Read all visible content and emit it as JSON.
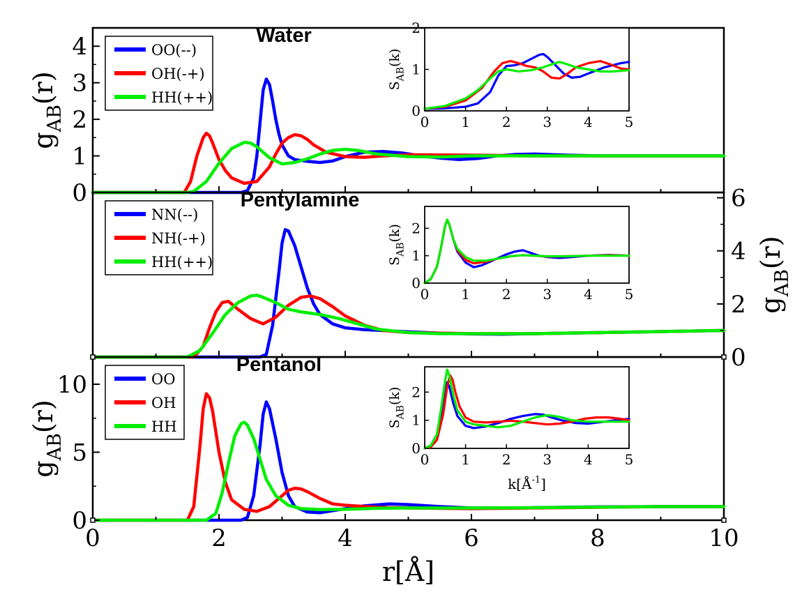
{
  "chart_data": [
    {
      "type": "line",
      "title": "Water",
      "ylabel": "g_AB(r)",
      "xlim": [
        0,
        10
      ],
      "ylim": [
        0,
        4.5
      ],
      "yticks": [
        0,
        1,
        2,
        3,
        4
      ],
      "y_axis_side": "left",
      "legend_position": "top-left",
      "series": [
        {
          "name": "OO(--)",
          "color": "#0000ff",
          "x": [
            0,
            2.35,
            2.45,
            2.55,
            2.6,
            2.65,
            2.7,
            2.75,
            2.8,
            2.85,
            2.9,
            2.95,
            3.0,
            3.1,
            3.2,
            3.4,
            3.6,
            3.8,
            4.0,
            4.3,
            4.6,
            4.9,
            5.2,
            5.5,
            5.8,
            6.1,
            6.4,
            6.7,
            7.0,
            7.5,
            8,
            9,
            10
          ],
          "y": [
            0,
            0,
            0.05,
            0.4,
            1.0,
            1.9,
            2.8,
            3.1,
            2.95,
            2.5,
            2.0,
            1.6,
            1.3,
            1.0,
            0.9,
            0.85,
            0.82,
            0.86,
            0.98,
            1.1,
            1.12,
            1.08,
            1.0,
            0.94,
            0.9,
            0.93,
            1.0,
            1.04,
            1.05,
            1.02,
            1.0,
            1.0,
            1.0
          ]
        },
        {
          "name": "OH(-+)",
          "color": "#ff0000",
          "x": [
            0,
            1.45,
            1.55,
            1.65,
            1.75,
            1.8,
            1.85,
            1.9,
            2.0,
            2.1,
            2.2,
            2.4,
            2.6,
            2.8,
            2.9,
            3.0,
            3.1,
            3.2,
            3.3,
            3.4,
            3.5,
            3.7,
            4.0,
            4.3,
            4.6,
            5.0,
            6,
            7,
            8,
            9,
            10
          ],
          "y": [
            0,
            0,
            0.3,
            1.0,
            1.5,
            1.62,
            1.55,
            1.35,
            0.9,
            0.6,
            0.4,
            0.25,
            0.3,
            0.7,
            1.05,
            1.35,
            1.5,
            1.58,
            1.55,
            1.45,
            1.3,
            1.1,
            0.98,
            0.96,
            1.0,
            1.03,
            1.02,
            1.0,
            1.0,
            1.0,
            1.0
          ]
        },
        {
          "name": "HH(++)",
          "color": "#00ee00",
          "x": [
            0,
            1.5,
            1.6,
            1.8,
            2.0,
            2.2,
            2.4,
            2.5,
            2.6,
            2.7,
            2.8,
            3.0,
            3.2,
            3.4,
            3.6,
            3.8,
            4.0,
            4.2,
            4.5,
            5.0,
            5.5,
            6,
            7,
            8,
            9,
            10
          ],
          "y": [
            0,
            0,
            0.03,
            0.3,
            0.8,
            1.2,
            1.37,
            1.35,
            1.25,
            1.1,
            0.95,
            0.78,
            0.82,
            0.92,
            1.05,
            1.15,
            1.18,
            1.15,
            1.05,
            0.98,
            0.97,
            1.0,
            1.0,
            1.0,
            1.0,
            1.0
          ]
        }
      ]
    },
    {
      "type": "line",
      "title": "Pentylamine",
      "ylabel": "g_AB(r)",
      "xlim": [
        0,
        10
      ],
      "ylim": [
        0,
        6.2
      ],
      "yticks": [
        0,
        2,
        4,
        6
      ],
      "y_axis_side": "right",
      "legend_position": "top-left",
      "series": [
        {
          "name": "NN(--)",
          "color": "#0000ff",
          "x": [
            0,
            2.65,
            2.75,
            2.85,
            2.95,
            3.0,
            3.05,
            3.1,
            3.2,
            3.3,
            3.4,
            3.5,
            3.6,
            3.8,
            4.0,
            4.3,
            4.6,
            5.0,
            5.5,
            6,
            6.5,
            7,
            8,
            9,
            10
          ],
          "y": [
            0,
            0,
            0.1,
            1.2,
            3.2,
            4.3,
            4.8,
            4.75,
            4.2,
            3.4,
            2.6,
            2.0,
            1.6,
            1.25,
            1.1,
            1.03,
            1.0,
            0.95,
            0.9,
            0.87,
            0.86,
            0.88,
            0.92,
            0.96,
            1.0
          ]
        },
        {
          "name": "NH(-+)",
          "color": "#ff0000",
          "x": [
            0,
            1.6,
            1.75,
            1.85,
            1.95,
            2.05,
            2.15,
            2.3,
            2.5,
            2.7,
            2.9,
            3.1,
            3.3,
            3.45,
            3.6,
            3.8,
            4.0,
            4.3,
            4.6,
            5,
            5.5,
            6,
            7,
            8,
            9,
            10
          ],
          "y": [
            0,
            0,
            0.4,
            1.1,
            1.7,
            2.05,
            2.1,
            1.8,
            1.45,
            1.25,
            1.5,
            1.95,
            2.25,
            2.3,
            2.2,
            1.9,
            1.55,
            1.2,
            1.0,
            0.92,
            0.9,
            0.88,
            0.88,
            0.92,
            0.96,
            1.0
          ]
        },
        {
          "name": "HH(++)",
          "color": "#00ee00",
          "x": [
            0,
            1.5,
            1.7,
            1.9,
            2.1,
            2.3,
            2.5,
            2.6,
            2.7,
            2.9,
            3.1,
            3.3,
            3.6,
            3.9,
            4.2,
            4.5,
            5,
            5.5,
            6,
            7,
            8,
            9,
            10
          ],
          "y": [
            0,
            0,
            0.25,
            0.9,
            1.6,
            2.05,
            2.3,
            2.33,
            2.25,
            2.05,
            1.8,
            1.7,
            1.6,
            1.45,
            1.25,
            1.05,
            0.92,
            0.88,
            0.88,
            0.88,
            0.92,
            0.96,
            1.0
          ]
        }
      ]
    },
    {
      "type": "line",
      "title": "Pentanol",
      "ylabel": "g_AB(r)",
      "xlabel": "r[Å]",
      "xlim": [
        0,
        10
      ],
      "ylim": [
        0,
        12
      ],
      "yticks": [
        0,
        5,
        10
      ],
      "xticks": [
        0,
        2,
        4,
        6,
        8,
        10
      ],
      "y_axis_side": "left",
      "legend_position": "top-left",
      "series": [
        {
          "name": "OO",
          "color": "#0000ff",
          "x": [
            0,
            2.35,
            2.45,
            2.55,
            2.65,
            2.7,
            2.75,
            2.8,
            2.9,
            3.0,
            3.1,
            3.2,
            3.4,
            3.6,
            3.8,
            4.0,
            4.3,
            4.7,
            5.0,
            5.5,
            6,
            7,
            8,
            9,
            10
          ],
          "y": [
            0,
            0,
            0.2,
            1.8,
            5.5,
            7.8,
            8.7,
            8.2,
            6.0,
            3.5,
            1.8,
            1.0,
            0.6,
            0.55,
            0.7,
            0.85,
            1.05,
            1.2,
            1.15,
            1.0,
            0.9,
            0.92,
            0.98,
            1.0,
            1.0
          ]
        },
        {
          "name": "OH",
          "color": "#ff0000",
          "x": [
            0,
            1.5,
            1.6,
            1.7,
            1.75,
            1.8,
            1.85,
            1.9,
            2.0,
            2.1,
            2.2,
            2.4,
            2.6,
            2.8,
            3.0,
            3.1,
            3.2,
            3.3,
            3.4,
            3.6,
            3.8,
            4.0,
            4.5,
            5,
            6,
            7,
            8,
            9,
            10
          ],
          "y": [
            0,
            0,
            1.0,
            5.5,
            8.2,
            9.3,
            9.0,
            8.0,
            5.0,
            2.8,
            1.5,
            0.8,
            0.65,
            1.0,
            1.8,
            2.2,
            2.35,
            2.3,
            2.1,
            1.6,
            1.2,
            1.1,
            0.95,
            0.9,
            0.85,
            0.9,
            0.95,
            1.0,
            1.0
          ]
        },
        {
          "name": "HH",
          "color": "#00ee00",
          "x": [
            0,
            1.8,
            1.95,
            2.05,
            2.15,
            2.25,
            2.35,
            2.4,
            2.45,
            2.55,
            2.65,
            2.75,
            2.9,
            3.1,
            3.3,
            3.6,
            4.0,
            4.5,
            5,
            6,
            7,
            8,
            9,
            10
          ],
          "y": [
            0,
            0,
            0.5,
            2.0,
            4.2,
            6.2,
            7.1,
            7.2,
            7.0,
            6.0,
            4.5,
            3.0,
            1.8,
            1.1,
            0.85,
            0.78,
            0.8,
            0.88,
            0.9,
            0.9,
            0.92,
            0.96,
            1.0,
            1.0
          ]
        }
      ]
    },
    {
      "type": "line",
      "title": "",
      "ylabel": "S_AB(k)",
      "xlim": [
        0,
        5
      ],
      "ylim": [
        0,
        2
      ],
      "xticks": [
        0,
        1,
        2,
        3,
        4,
        5
      ],
      "yticks": [
        0,
        1,
        2
      ],
      "inset_of": "Water",
      "series": [
        {
          "name": "",
          "color": "#0000ff",
          "x": [
            0,
            0.5,
            1.0,
            1.3,
            1.6,
            1.8,
            2.0,
            2.2,
            2.4,
            2.6,
            2.8,
            2.9,
            3.0,
            3.2,
            3.4,
            3.6,
            3.8,
            4.0,
            4.4,
            4.8,
            5.0
          ],
          "y": [
            0.05,
            0.06,
            0.1,
            0.18,
            0.45,
            0.85,
            1.08,
            1.1,
            1.15,
            1.25,
            1.35,
            1.37,
            1.3,
            1.1,
            0.9,
            0.8,
            0.82,
            0.9,
            1.05,
            1.15,
            1.18
          ]
        },
        {
          "name": "",
          "color": "#ff0000",
          "x": [
            0,
            0.5,
            1.0,
            1.4,
            1.7,
            1.9,
            2.1,
            2.3,
            2.5,
            2.7,
            2.9,
            3.1,
            3.3,
            3.5,
            3.7,
            4.0,
            4.3,
            4.6,
            4.8,
            5.0
          ],
          "y": [
            0.05,
            0.1,
            0.25,
            0.55,
            0.95,
            1.15,
            1.2,
            1.15,
            1.08,
            1.05,
            0.95,
            0.8,
            0.78,
            0.9,
            1.05,
            1.15,
            1.2,
            1.1,
            1.02,
            1.0
          ]
        },
        {
          "name": "",
          "color": "#00ee00",
          "x": [
            0,
            0.5,
            1.0,
            1.3,
            1.6,
            1.8,
            2.0,
            2.3,
            2.6,
            2.9,
            3.1,
            3.3,
            3.5,
            3.7,
            4.0,
            4.3,
            4.6,
            5.0
          ],
          "y": [
            0.05,
            0.12,
            0.3,
            0.5,
            0.78,
            0.95,
            1.0,
            0.95,
            0.98,
            1.05,
            1.12,
            1.18,
            1.12,
            1.05,
            1.0,
            0.95,
            0.95,
            0.98
          ]
        }
      ]
    },
    {
      "type": "line",
      "title": "",
      "ylabel": "S_AB(k)",
      "xlim": [
        0,
        5
      ],
      "ylim": [
        0,
        2.8
      ],
      "xticks": [
        0,
        1,
        2,
        3,
        4,
        5
      ],
      "yticks": [
        0,
        1,
        2
      ],
      "inset_of": "Pentylamine",
      "series": [
        {
          "name": "",
          "color": "#0000ff",
          "x": [
            0,
            0.15,
            0.3,
            0.4,
            0.5,
            0.55,
            0.6,
            0.7,
            0.8,
            1.0,
            1.2,
            1.4,
            1.7,
            2.0,
            2.2,
            2.4,
            2.6,
            2.8,
            3.0,
            3.3,
            3.6,
            4.0,
            4.5,
            5.0
          ],
          "y": [
            0,
            0.15,
            0.6,
            1.3,
            2.1,
            2.3,
            2.15,
            1.6,
            1.15,
            0.75,
            0.58,
            0.65,
            0.85,
            1.05,
            1.15,
            1.2,
            1.1,
            1.0,
            0.95,
            0.92,
            0.95,
            1.0,
            1.03,
            1.0
          ]
        },
        {
          "name": "",
          "color": "#ff0000",
          "x": [
            0,
            0.15,
            0.3,
            0.4,
            0.5,
            0.55,
            0.6,
            0.7,
            0.8,
            1.0,
            1.2,
            1.5,
            1.8,
            2.1,
            2.4,
            2.7,
            3.0,
            3.5,
            4.0,
            4.5,
            5.0
          ],
          "y": [
            0,
            0.15,
            0.6,
            1.3,
            2.1,
            2.3,
            2.15,
            1.6,
            1.2,
            0.85,
            0.72,
            0.78,
            0.9,
            0.98,
            1.02,
            1.0,
            0.97,
            0.98,
            1.0,
            1.02,
            1.0
          ]
        },
        {
          "name": "",
          "color": "#00ee00",
          "x": [
            0,
            0.15,
            0.3,
            0.4,
            0.5,
            0.55,
            0.6,
            0.7,
            0.8,
            1.0,
            1.2,
            1.5,
            1.8,
            2.1,
            2.4,
            2.7,
            3.0,
            3.5,
            4.0,
            4.5,
            5.0
          ],
          "y": [
            0,
            0.15,
            0.6,
            1.3,
            2.1,
            2.32,
            2.15,
            1.6,
            1.25,
            0.95,
            0.82,
            0.82,
            0.9,
            0.98,
            1.02,
            1.0,
            0.98,
            0.98,
            1.0,
            1.0,
            1.0
          ]
        }
      ]
    },
    {
      "type": "line",
      "title": "",
      "ylabel": "S_AB(k)",
      "xlabel": "k[Å⁻¹]",
      "xlim": [
        0,
        5
      ],
      "ylim": [
        0,
        2.9
      ],
      "xticks": [
        0,
        1,
        2,
        3,
        4,
        5
      ],
      "yticks": [
        0,
        1,
        2
      ],
      "inset_of": "Pentanol",
      "series": [
        {
          "name": "",
          "color": "#0000ff",
          "x": [
            0,
            0.15,
            0.3,
            0.4,
            0.5,
            0.55,
            0.6,
            0.7,
            0.8,
            1.0,
            1.2,
            1.5,
            1.8,
            2.1,
            2.4,
            2.7,
            2.9,
            3.1,
            3.4,
            3.7,
            4.0,
            4.4,
            4.8,
            5.0
          ],
          "y": [
            0,
            0.1,
            0.5,
            1.2,
            2.0,
            2.35,
            2.2,
            1.6,
            1.15,
            0.8,
            0.72,
            0.78,
            0.9,
            1.05,
            1.15,
            1.22,
            1.2,
            1.1,
            0.98,
            0.9,
            0.88,
            0.95,
            1.02,
            1.05
          ]
        },
        {
          "name": "",
          "color": "#ff0000",
          "x": [
            0,
            0.15,
            0.3,
            0.45,
            0.55,
            0.62,
            0.68,
            0.75,
            0.85,
            1.0,
            1.2,
            1.5,
            1.8,
            2.1,
            2.4,
            2.7,
            3.0,
            3.3,
            3.6,
            3.9,
            4.2,
            4.5,
            4.8,
            5.0
          ],
          "y": [
            0,
            0.05,
            0.3,
            1.2,
            2.2,
            2.6,
            2.45,
            2.0,
            1.5,
            1.1,
            0.95,
            0.92,
            0.95,
            0.98,
            0.95,
            0.9,
            0.85,
            0.88,
            0.95,
            1.05,
            1.1,
            1.1,
            1.05,
            1.0
          ]
        },
        {
          "name": "",
          "color": "#00ee00",
          "x": [
            0,
            0.15,
            0.3,
            0.4,
            0.5,
            0.55,
            0.6,
            0.7,
            0.8,
            1.0,
            1.2,
            1.5,
            1.8,
            2.1,
            2.4,
            2.7,
            3.0,
            3.3,
            3.6,
            4.0,
            4.4,
            4.8,
            5.0
          ],
          "y": [
            0,
            0.1,
            0.5,
            1.4,
            2.4,
            2.8,
            2.6,
            1.9,
            1.35,
            0.95,
            0.85,
            0.8,
            0.75,
            0.8,
            0.95,
            1.1,
            1.18,
            1.12,
            1.0,
            0.95,
            0.95,
            0.95,
            0.95
          ]
        }
      ]
    }
  ]
}
